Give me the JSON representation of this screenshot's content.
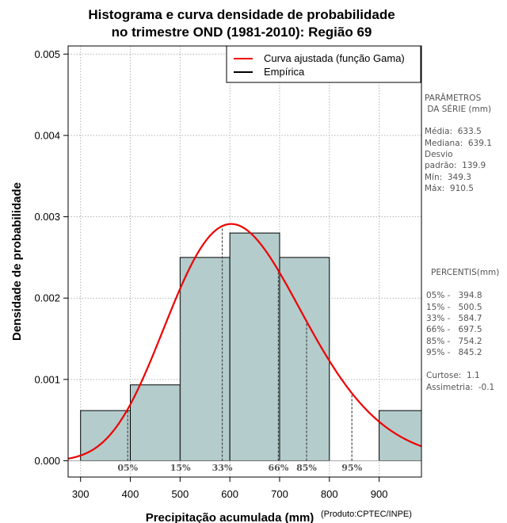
{
  "chart_data": {
    "type": "histogram",
    "title_line1": "Histograma e curva densidade de probabilidade",
    "title_line2": "no trimestre OND (1981-2010): Região 69",
    "xlabel": "Precipitação acumulada (mm)",
    "ylabel": "Densidade de probabilidade",
    "credit": "(Produto:CPTEC/INPE)",
    "xlim": [
      275,
      985
    ],
    "ylim": [
      -0.0002,
      0.0051
    ],
    "x_ticks": [
      300,
      400,
      500,
      600,
      700,
      800,
      900
    ],
    "y_ticks": [
      0.0,
      0.001,
      0.002,
      0.003,
      0.004,
      0.005
    ],
    "y_tick_labels": [
      "0.000",
      "0.001",
      "0.002",
      "0.003",
      "0.004",
      "0.005"
    ],
    "bins": [
      {
        "from": 300,
        "to": 400,
        "density": 0.000617
      },
      {
        "from": 400,
        "to": 500,
        "density": 0.000933
      },
      {
        "from": 500,
        "to": 600,
        "density": 0.0025
      },
      {
        "from": 600,
        "to": 700,
        "density": 0.0028
      },
      {
        "from": 700,
        "to": 800,
        "density": 0.0025
      },
      {
        "from": 800,
        "to": 900,
        "density": 0.0
      },
      {
        "from": 900,
        "to": 1000,
        "density": 0.000617
      }
    ],
    "gamma_fit": {
      "mean": 633.5,
      "sd": 139.9
    },
    "percentile_lines": [
      {
        "label": "05%",
        "value": 394.8
      },
      {
        "label": "15%",
        "value": 500.5
      },
      {
        "label": "33%",
        "value": 584.7
      },
      {
        "label": "66%",
        "value": 697.5
      },
      {
        "label": "85%",
        "value": 754.2
      },
      {
        "label": "95%",
        "value": 845.2
      }
    ],
    "legend": [
      {
        "label": "Curva ajustada (função Gama)",
        "color": "#ee0000"
      },
      {
        "label": "Empírica",
        "color": "#000000"
      }
    ],
    "colors": {
      "bar_fill": "#b4cccc",
      "curve": "#ee0000",
      "grid": "#b3b3b3",
      "percentile": "#444444"
    }
  },
  "sidebar": {
    "params_title_line1": "PARÂMETROS",
    "params_title_line2": " DA SÉRIE (mm)",
    "params": [
      "Média:  633.5",
      "Mediana:  639.1",
      "Desvio",
      "padrão:  139.9",
      "Mín:  349.3",
      "Máx:  910.5"
    ],
    "percentis_title": "PERCENTIS(mm)",
    "percentis": [
      "05% -   394.8",
      "15% -   500.5",
      "33% -   584.7",
      "66% -   697.5",
      "85% -   754.2",
      "95% -   845.2"
    ],
    "stats": [
      "Curtose:  1.1",
      "Assimetria:  -0.1"
    ]
  }
}
